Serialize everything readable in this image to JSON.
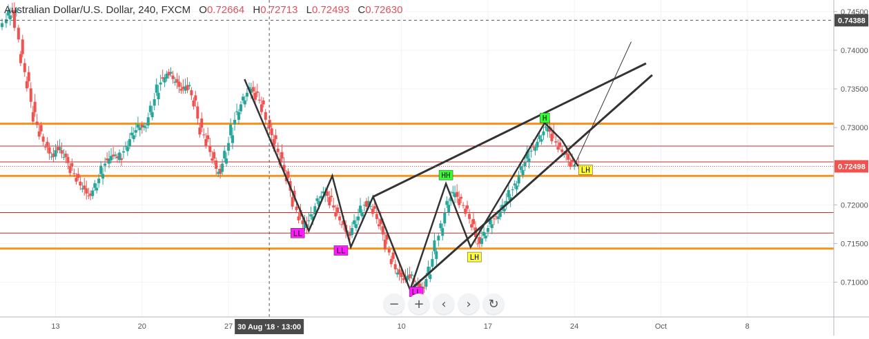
{
  "legend": {
    "symbol": "Australian Dollar/U.S. Dollar, 240, FXCM",
    "open_label": "O",
    "open": "0.72664",
    "high_label": "H",
    "high": "0.72713",
    "low_label": "L",
    "low": "0.72493",
    "close_label": "C",
    "close": "0.72630"
  },
  "toolbar": {
    "zoom_out": "−",
    "zoom_in": "+",
    "scroll_left": "‹",
    "scroll_right": "›",
    "reset": "↻"
  },
  "colors": {
    "up": "#26a69a",
    "down": "#ef5350",
    "support_orange": "#f7931a",
    "support_red": "#c62828",
    "pattern_line": "#333333",
    "label_magenta": "#ff1aff",
    "label_green": "#33ff33",
    "label_yellow": "#ffff33",
    "price_tag": "#ef5350",
    "crosshair_tag": "#4a4a4a"
  },
  "chart_data": {
    "type": "candlestick",
    "symbol": "AUDUSD",
    "timeframe": "240",
    "ylim": [
      0.7055,
      0.7465
    ],
    "yticks": [
      "0.74500",
      "0.74000",
      "0.73500",
      "0.73000",
      "0.72500",
      "0.72000",
      "0.71500",
      "0.71000"
    ],
    "xticks": [
      {
        "label": "13",
        "x": 13
      },
      {
        "label": "20",
        "x": 20
      },
      {
        "label": "27",
        "x": 27
      },
      {
        "label": "10",
        "x": 41
      },
      {
        "label": "17",
        "x": 48
      },
      {
        "label": "24",
        "x": 55
      },
      {
        "label": "Oct",
        "x": 62
      },
      {
        "label": "8",
        "x": 69
      }
    ],
    "xlim": [
      8.5,
      76
    ],
    "crosshair": {
      "x_label": "30 Aug '18 · 13:00",
      "x": 30.3,
      "y_label": "0.74388",
      "y": 0.74388
    },
    "last_price": {
      "label": "0.72498",
      "y": 0.72498
    },
    "closes": [
      [
        8.5,
        0.743
      ],
      [
        9,
        0.7445
      ],
      [
        9.5,
        0.7452
      ],
      [
        10,
        0.7395
      ],
      [
        10.5,
        0.736
      ],
      [
        11,
        0.732
      ],
      [
        11.5,
        0.7295
      ],
      [
        12,
        0.7275
      ],
      [
        12.5,
        0.7262
      ],
      [
        13,
        0.7275
      ],
      [
        13.5,
        0.7262
      ],
      [
        14,
        0.725
      ],
      [
        14.5,
        0.7235
      ],
      [
        15,
        0.722
      ],
      [
        15.5,
        0.7212
      ],
      [
        16,
        0.7222
      ],
      [
        16.5,
        0.724
      ],
      [
        17,
        0.726
      ],
      [
        17.5,
        0.7265
      ],
      [
        18,
        0.7258
      ],
      [
        18.5,
        0.7275
      ],
      [
        19,
        0.729
      ],
      [
        19.5,
        0.73
      ],
      [
        20,
        0.73
      ],
      [
        20.5,
        0.732
      ],
      [
        21,
        0.7345
      ],
      [
        21.5,
        0.7365
      ],
      [
        22,
        0.7372
      ],
      [
        22.5,
        0.7358
      ],
      [
        23,
        0.735
      ],
      [
        23.5,
        0.7355
      ],
      [
        24,
        0.7335
      ],
      [
        24.5,
        0.73
      ],
      [
        25,
        0.7285
      ],
      [
        25.5,
        0.726
      ],
      [
        26,
        0.724
      ],
      [
        26.5,
        0.726
      ],
      [
        27,
        0.729
      ],
      [
        27.5,
        0.732
      ],
      [
        28,
        0.7335
      ],
      [
        28.5,
        0.735
      ],
      [
        29,
        0.7345
      ],
      [
        29.5,
        0.733
      ],
      [
        30,
        0.73
      ],
      [
        30.5,
        0.7285
      ],
      [
        31,
        0.726
      ],
      [
        31.5,
        0.7235
      ],
      [
        32,
        0.721
      ],
      [
        32.5,
        0.7185
      ],
      [
        33,
        0.717
      ],
      [
        33.5,
        0.7185
      ],
      [
        34,
        0.7205
      ],
      [
        34.5,
        0.7215
      ],
      [
        35,
        0.721
      ],
      [
        35.5,
        0.719
      ],
      [
        36,
        0.7175
      ],
      [
        36.5,
        0.716
      ],
      [
        37,
        0.7175
      ],
      [
        37.5,
        0.719
      ],
      [
        38,
        0.7205
      ],
      [
        38.5,
        0.7195
      ],
      [
        39,
        0.7175
      ],
      [
        39.5,
        0.7155
      ],
      [
        40,
        0.713
      ],
      [
        40.5,
        0.711
      ],
      [
        41,
        0.7105
      ],
      [
        41.5,
        0.711
      ],
      [
        42,
        0.7095
      ],
      [
        42.5,
        0.7092
      ],
      [
        43,
        0.711
      ],
      [
        43.5,
        0.714
      ],
      [
        44,
        0.717
      ],
      [
        44.5,
        0.72
      ],
      [
        45,
        0.7215
      ],
      [
        45.5,
        0.7208
      ],
      [
        46,
        0.7195
      ],
      [
        46.5,
        0.7175
      ],
      [
        47,
        0.715
      ],
      [
        47.5,
        0.716
      ],
      [
        48,
        0.7175
      ],
      [
        48.5,
        0.7185
      ],
      [
        49,
        0.7195
      ],
      [
        49.5,
        0.721
      ],
      [
        50,
        0.7225
      ],
      [
        50.5,
        0.7245
      ],
      [
        51,
        0.726
      ],
      [
        51.5,
        0.7275
      ],
      [
        52,
        0.7285
      ],
      [
        52.5,
        0.73
      ],
      [
        53,
        0.7292
      ],
      [
        53.5,
        0.7275
      ],
      [
        54,
        0.7265
      ],
      [
        54.5,
        0.7255
      ],
      [
        55,
        0.725
      ]
    ],
    "horizontal_levels": [
      {
        "y": 0.7305,
        "color": "orange",
        "width": 3
      },
      {
        "y": 0.72375,
        "color": "orange",
        "width": 3
      },
      {
        "y": 0.71435,
        "color": "orange",
        "width": 3
      },
      {
        "y": 0.7276,
        "color": "red",
        "width": 1
      },
      {
        "y": 0.72555,
        "color": "red",
        "width": 1
      },
      {
        "y": 0.719,
        "color": "red",
        "width": 1
      },
      {
        "y": 0.71635,
        "color": "red",
        "width": 1
      }
    ],
    "zigzag": [
      [
        28.3,
        0.73625
      ],
      [
        33.5,
        0.71665
      ],
      [
        35.4,
        0.72375
      ],
      [
        36.9,
        0.71455
      ],
      [
        38.7,
        0.72105
      ],
      [
        41.7,
        0.709
      ],
      [
        44.6,
        0.72275
      ],
      [
        46.6,
        0.71455
      ],
      [
        52.6,
        0.7306
      ],
      [
        54.0,
        0.72835
      ],
      [
        55.3,
        0.725
      ]
    ],
    "trendlines": [
      {
        "from": [
          38.7,
          0.72105
        ],
        "to": [
          60.8,
          0.7383
        ],
        "width": 3
      },
      {
        "from": [
          41.7,
          0.709
        ],
        "to": [
          61.3,
          0.7368
        ],
        "width": 3
      },
      {
        "from": [
          55.0,
          0.7251
        ],
        "to": [
          59.6,
          0.7411
        ],
        "width": 1
      }
    ],
    "labels": [
      {
        "text": "LL",
        "x": 32.6,
        "y": 0.71635,
        "bg": "magenta"
      },
      {
        "text": "LL",
        "x": 36.1,
        "y": 0.7141,
        "bg": "magenta"
      },
      {
        "text": "LL",
        "x": 42.2,
        "y": 0.70875,
        "bg": "magenta"
      },
      {
        "text": "HH",
        "x": 44.6,
        "y": 0.72385,
        "bg": "green"
      },
      {
        "text": "LH",
        "x": 46.9,
        "y": 0.71325,
        "bg": "yellow"
      },
      {
        "text": "H",
        "x": 52.6,
        "y": 0.73125,
        "bg": "green"
      },
      {
        "text": "LH",
        "x": 55.9,
        "y": 0.72455,
        "bg": "yellow"
      }
    ]
  }
}
